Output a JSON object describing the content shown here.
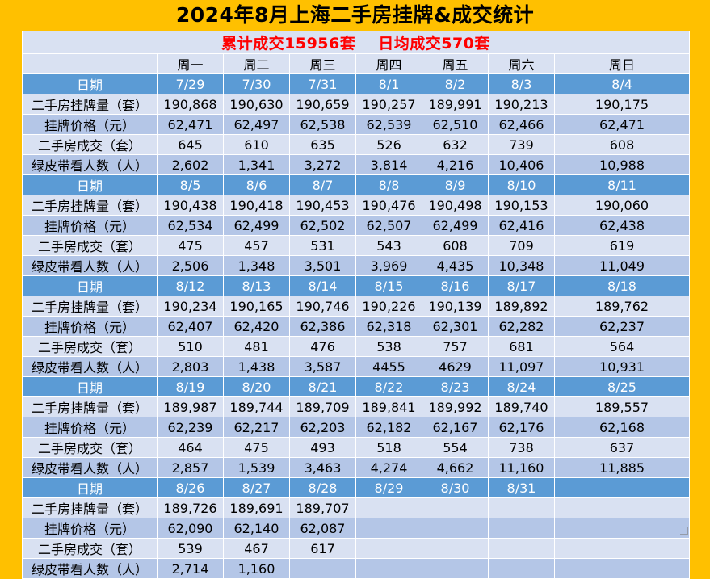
{
  "title": "2024年8月上海二手房挂牌&成交统计",
  "summary": {
    "total": "累计成交15956套",
    "daily_avg": "日均成交570套"
  },
  "weekdays": [
    "周一",
    "周二",
    "周三",
    "周四",
    "周五",
    "周六",
    "周日"
  ],
  "row_labels": {
    "date": "日期",
    "listings": "二手房挂牌量（套）",
    "price": "挂牌价格（元）",
    "deals": "二手房成交（套）",
    "viewers": "绿皮带看人数（人）"
  },
  "weeks": [
    {
      "dates": [
        "7/29",
        "7/30",
        "7/31",
        "8/1",
        "8/2",
        "8/3",
        "8/4"
      ],
      "listings": [
        "190,868",
        "190,630",
        "190,659",
        "190,257",
        "189,991",
        "190,213",
        "190,175"
      ],
      "price": [
        "62,471",
        "62,497",
        "62,538",
        "62,539",
        "62,510",
        "62,466",
        "62,471"
      ],
      "deals": [
        "645",
        "610",
        "635",
        "526",
        "632",
        "739",
        "608"
      ],
      "viewers": [
        "2,602",
        "1,341",
        "3,272",
        "3,814",
        "4,216",
        "10,406",
        "10,988"
      ]
    },
    {
      "dates": [
        "8/5",
        "8/6",
        "8/7",
        "8/8",
        "8/9",
        "8/10",
        "8/11"
      ],
      "listings": [
        "190,438",
        "190,418",
        "190,453",
        "190,476",
        "190,498",
        "190,153",
        "190,060"
      ],
      "price": [
        "62,534",
        "62,499",
        "62,502",
        "62,507",
        "62,499",
        "62,416",
        "62,438"
      ],
      "deals": [
        "475",
        "457",
        "531",
        "543",
        "608",
        "709",
        "619"
      ],
      "viewers": [
        "2,506",
        "1,348",
        "3,501",
        "3,969",
        "4,435",
        "10,348",
        "11,049"
      ]
    },
    {
      "dates": [
        "8/12",
        "8/13",
        "8/14",
        "8/15",
        "8/16",
        "8/17",
        "8/18"
      ],
      "listings": [
        "190,234",
        "190,165",
        "190,746",
        "190,226",
        "190,139",
        "189,892",
        "189,762"
      ],
      "price": [
        "62,407",
        "62,420",
        "62,386",
        "62,318",
        "62,301",
        "62,282",
        "62,237"
      ],
      "deals": [
        "510",
        "481",
        "476",
        "538",
        "757",
        "681",
        "564"
      ],
      "viewers": [
        "2,803",
        "1,438",
        "3,587",
        "4455",
        "4629",
        "11,097",
        "10,931"
      ]
    },
    {
      "dates": [
        "8/19",
        "8/20",
        "8/21",
        "8/22",
        "8/23",
        "8/24",
        "8/25"
      ],
      "listings": [
        "189,987",
        "189,744",
        "189,709",
        "189,841",
        "189,992",
        "189,740",
        "189,557"
      ],
      "price": [
        "62,239",
        "62,217",
        "62,203",
        "62,182",
        "62,167",
        "62,176",
        "62,168"
      ],
      "deals": [
        "464",
        "475",
        "493",
        "518",
        "554",
        "738",
        "637"
      ],
      "viewers": [
        "2,857",
        "1,539",
        "3,463",
        "4,274",
        "4,662",
        "11,160",
        "11,885"
      ]
    },
    {
      "dates": [
        "8/26",
        "8/27",
        "8/28",
        "8/29",
        "8/30",
        "8/31",
        ""
      ],
      "listings": [
        "189,726",
        "189,691",
        "189,707",
        "",
        "",
        "",
        ""
      ],
      "price": [
        "62,090",
        "62,140",
        "62,087",
        "",
        "",
        "",
        ""
      ],
      "deals": [
        "539",
        "467",
        "617",
        "",
        "",
        "",
        ""
      ],
      "viewers": [
        "2,714",
        "1,160",
        "",
        "",
        "",
        "",
        ""
      ]
    }
  ],
  "colors": {
    "background": "#FFC000",
    "date_row": "#5B9BD5",
    "light_row": "#D9E1F2",
    "mid_row": "#B4C6E7",
    "summary_text": "#FF0000"
  }
}
